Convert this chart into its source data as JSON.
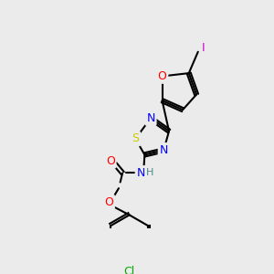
{
  "bg_color": "#ebebeb",
  "bond_color": "#000000",
  "atom_colors": {
    "N": "#0000ff",
    "O": "#ff0000",
    "S": "#cccc00",
    "Cl": "#00aa00",
    "I": "#cc00cc",
    "H": "#4a8a8a",
    "C": "#000000"
  },
  "figsize": [
    3.0,
    3.0
  ],
  "dpi": 100
}
